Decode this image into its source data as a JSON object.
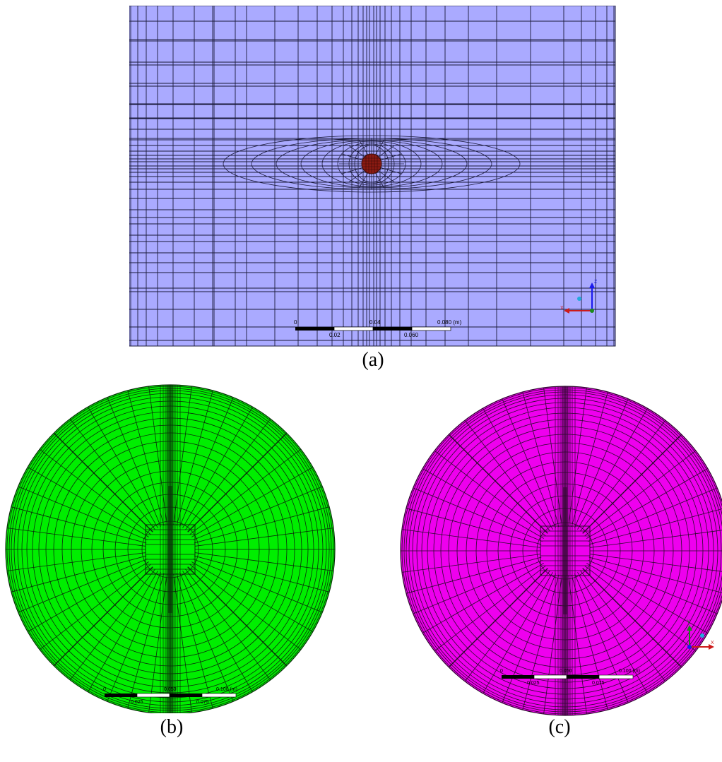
{
  "panels": {
    "a": {
      "caption": "(a)",
      "colors": {
        "fill": "#aaaaff",
        "grid": "#1a1a3a",
        "sphere": "#8b1a12"
      },
      "scale": {
        "top_labels": [
          "0",
          "0.04",
          "0.080 (m)"
        ],
        "bottom_labels": [
          "0.02",
          "0.060"
        ]
      },
      "axes": {
        "z": "Z",
        "x": "X"
      }
    },
    "b": {
      "caption": "(b)",
      "colors": {
        "fill": "#00ee00",
        "grid": "#0a2a0a"
      },
      "scale": {
        "top_labels": [
          "0",
          "0.050",
          "0.100 (m)"
        ],
        "bottom_labels": [
          "0.025",
          "0.075"
        ]
      }
    },
    "c": {
      "caption": "(c)",
      "colors": {
        "fill": "#ee00ee",
        "grid": "#2a0a2a"
      },
      "scale": {
        "top_labels": [
          "0",
          "0.050",
          "0.100 (m)"
        ],
        "bottom_labels": [
          "0.025",
          "0.075"
        ]
      },
      "axes": {
        "y": "Y",
        "x": "X"
      }
    }
  }
}
